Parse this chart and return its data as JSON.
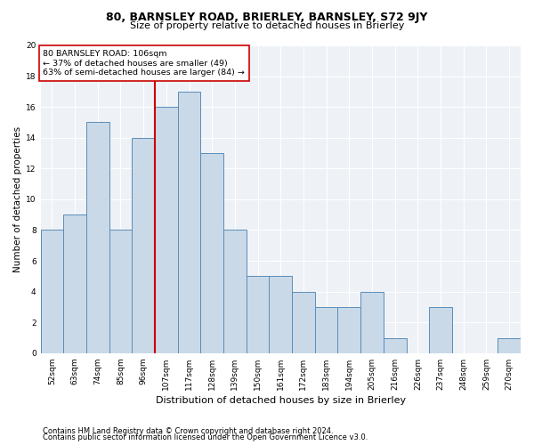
{
  "title1": "80, BARNSLEY ROAD, BRIERLEY, BARNSLEY, S72 9JY",
  "title2": "Size of property relative to detached houses in Brierley",
  "xlabel": "Distribution of detached houses by size in Brierley",
  "ylabel": "Number of detached properties",
  "categories": [
    "52sqm",
    "63sqm",
    "74sqm",
    "85sqm",
    "96sqm",
    "107sqm",
    "117sqm",
    "128sqm",
    "139sqm",
    "150sqm",
    "161sqm",
    "172sqm",
    "183sqm",
    "194sqm",
    "205sqm",
    "216sqm",
    "226sqm",
    "237sqm",
    "248sqm",
    "259sqm",
    "270sqm"
  ],
  "values": [
    8,
    9,
    15,
    8,
    14,
    16,
    17,
    13,
    8,
    5,
    5,
    4,
    3,
    3,
    4,
    1,
    0,
    3,
    0,
    0,
    1
  ],
  "bar_color": "#c9d9e8",
  "bar_edge_color": "#5b8db8",
  "vline_index": 5,
  "vline_color": "#cc0000",
  "annotation_title": "80 BARNSLEY ROAD: 106sqm",
  "annotation_line1": "← 37% of detached houses are smaller (49)",
  "annotation_line2": "63% of semi-detached houses are larger (84) →",
  "annotation_box_color": "#ffffff",
  "annotation_box_edge": "#cc0000",
  "ylim": [
    0,
    20
  ],
  "yticks": [
    0,
    2,
    4,
    6,
    8,
    10,
    12,
    14,
    16,
    18,
    20
  ],
  "footnote1": "Contains HM Land Registry data © Crown copyright and database right 2024.",
  "footnote2": "Contains public sector information licensed under the Open Government Licence v3.0.",
  "bg_color": "#eef2f7",
  "title1_fontsize": 9,
  "title2_fontsize": 8,
  "xlabel_fontsize": 8,
  "ylabel_fontsize": 7.5,
  "tick_fontsize": 6.5,
  "footnote_fontsize": 6
}
